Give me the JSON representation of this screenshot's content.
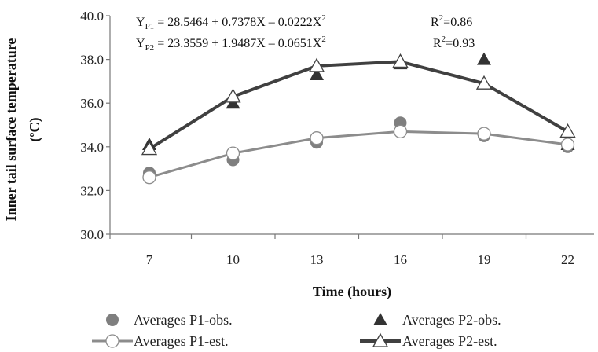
{
  "chart_data": {
    "type": "line",
    "xlabel": "Time (hours)",
    "ylabel": "Inner tail surface temperature",
    "ylabel_unit": "(ºC)",
    "categories": [
      "7",
      "10",
      "13",
      "16",
      "19",
      "22"
    ],
    "ylim": [
      30.0,
      40.0
    ],
    "yticks": [
      "30.0",
      "32.0",
      "34.0",
      "36.0",
      "38.0",
      "40.0"
    ],
    "grid": false,
    "legend_position": "bottom",
    "series": [
      {
        "name": "Averages P1-obs.",
        "kind": "observed",
        "marker": "circle-filled",
        "color": "#7f7f7f",
        "values": [
          32.8,
          33.4,
          34.2,
          35.1,
          34.5,
          34.0
        ]
      },
      {
        "name": "Averages P2-obs.",
        "kind": "observed",
        "marker": "triangle-filled",
        "color": "#333333",
        "values": [
          34.1,
          36.0,
          37.3,
          37.8,
          38.0,
          34.1
        ]
      },
      {
        "name": "Averages P1-est.",
        "kind": "estimated",
        "marker": "circle-open",
        "color": "#8c8c8c",
        "values": [
          32.6,
          33.7,
          34.4,
          34.7,
          34.6,
          34.1
        ]
      },
      {
        "name": "Averages P2-est.",
        "kind": "estimated",
        "marker": "triangle-open",
        "color": "#404040",
        "values": [
          33.9,
          36.3,
          37.7,
          37.9,
          36.9,
          34.7
        ]
      }
    ],
    "annotations": {
      "eq1": {
        "lhs": "Y",
        "sub": "P1",
        "rhs": " = 28.5464 + 0.7378X – 0.0222X",
        "sup": "2",
        "r_base": "R",
        "r_sup": "2",
        "r_val": "=0.86"
      },
      "eq2": {
        "lhs": "Y",
        "sub": "P2",
        "rhs": " = 23.3559 + 1.9487X – 0.0651X",
        "sup": "2",
        "r_base": "R",
        "r_sup": "2",
        "r_val": "=0.93"
      }
    }
  }
}
